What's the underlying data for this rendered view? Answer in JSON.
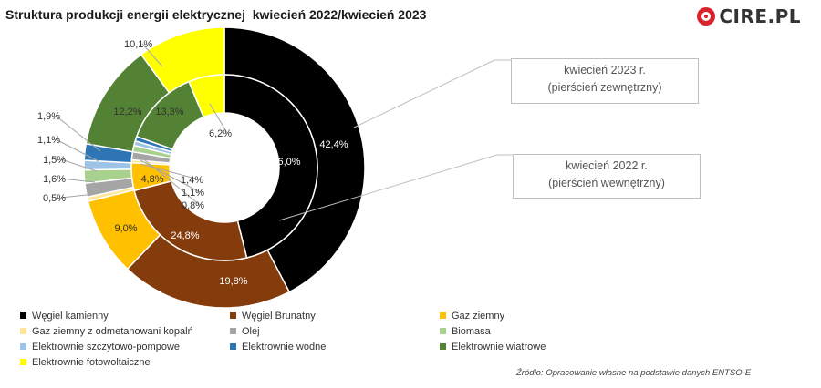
{
  "header": {
    "title": "Struktura produkcji energii elektrycznej  kwiecień 2022/kwiecień 2023",
    "logo_text": "CIRE.PL"
  },
  "callouts": {
    "outer_line1": "kwiecień 2023 r.",
    "outer_line2": "(pierścień zewnętrzny)",
    "inner_line1": "kwiecień 2022 r.",
    "inner_line2": "(pierścień wewnętrzny)"
  },
  "source": "Źródło: Opracowanie własne na podstawie danych ENTSO-E",
  "chart_data": {
    "type": "pie",
    "title": "Struktura produkcji energii elektrycznej  kwiecień 2022/kwiecień 2023",
    "subtype": "nested-donut",
    "categories": [
      "Węgiel kamienny",
      "Węgiel Brunatny",
      "Gaz  ziemny",
      "Gaz ziemny z odmetanowani kopalń",
      "Olej",
      "Biomasa",
      "Elektrownie szczytowo-pompowe",
      "Elektrownie wodne",
      "Elektrownie wiatrowe",
      "Elektrownie fotowoltaiczne"
    ],
    "colors": [
      "#000000",
      "#843c0c",
      "#ffc000",
      "#ffe699",
      "#a5a5a5",
      "#a9d18e",
      "#9dc3e6",
      "#2e75b6",
      "#548235",
      "#ffff00"
    ],
    "series": [
      {
        "name": "kwiecień 2023 r.",
        "ring": "outer",
        "values": [
          42.4,
          19.8,
          9.0,
          0.5,
          1.6,
          1.5,
          1.1,
          1.9,
          12.2,
          10.1
        ],
        "labels": [
          "42,4%",
          "19,8%",
          "9,0%",
          "0,5%",
          "1,6%",
          "1,5%",
          "1,1%",
          "1,9%",
          "12,2%",
          "10,1%"
        ]
      },
      {
        "name": "kwiecień 2022 r.",
        "ring": "inner",
        "values": [
          46.0,
          24.8,
          4.8,
          0.5,
          1.4,
          1.1,
          0.8,
          0.8,
          13.3,
          6.2
        ],
        "labels": [
          "46,0%",
          "24,8%",
          "4,8%",
          "",
          "1,4%",
          "1,1%",
          "0,8%",
          "",
          "13,3%",
          "6,2%"
        ]
      }
    ],
    "legend_position": "bottom"
  }
}
